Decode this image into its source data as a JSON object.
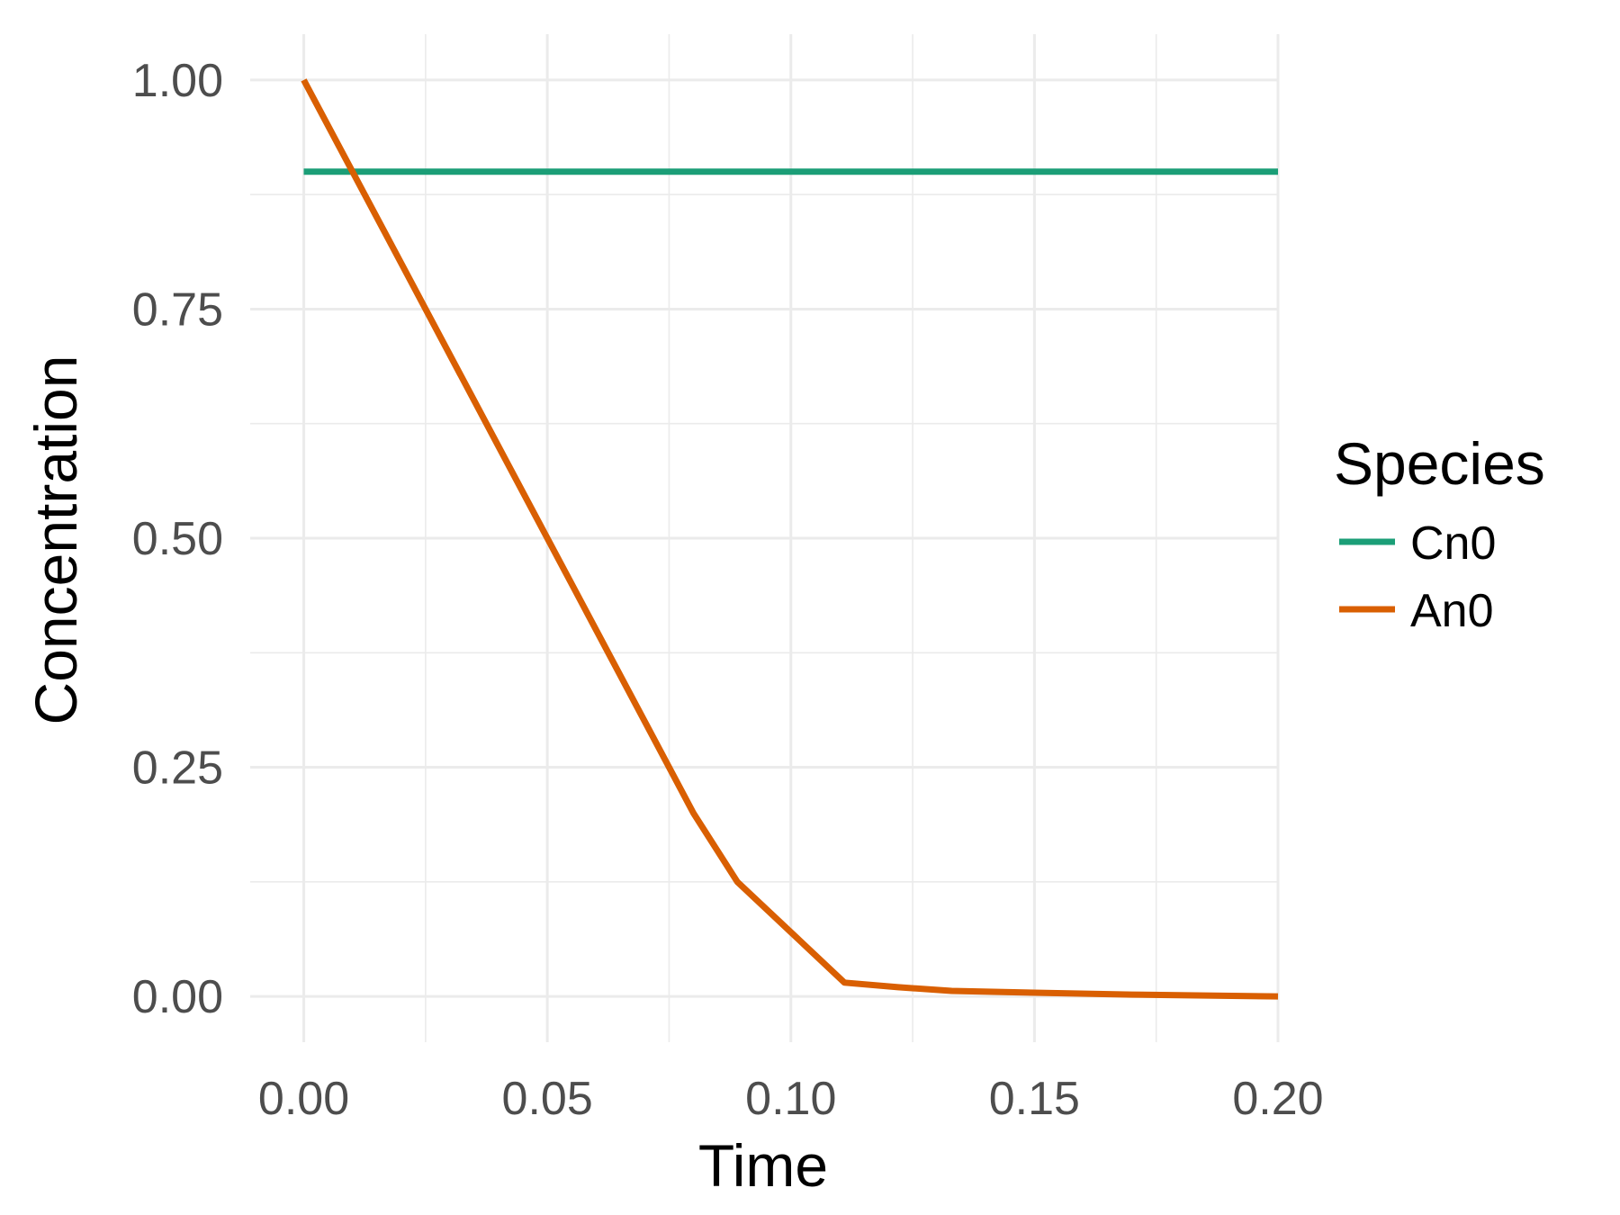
{
  "chart_data": {
    "type": "line",
    "xlabel": "Time",
    "ylabel": "Concentration",
    "xlim": [
      -0.011,
      0.2
    ],
    "ylim": [
      -0.05,
      1.05
    ],
    "x_ticks": [
      0.0,
      0.05,
      0.1,
      0.15,
      0.2
    ],
    "x_tick_labels": [
      "0.00",
      "0.05",
      "0.10",
      "0.15",
      "0.20"
    ],
    "x_minor_ticks": [
      0.025,
      0.075,
      0.125,
      0.175
    ],
    "y_ticks": [
      0.0,
      0.25,
      0.5,
      0.75,
      1.0
    ],
    "y_tick_labels": [
      "0.00",
      "0.25",
      "0.50",
      "0.75",
      "1.00"
    ],
    "y_minor_ticks": [
      0.125,
      0.375,
      0.625,
      0.875
    ],
    "grid": true,
    "legend": {
      "title": "Species",
      "position": "right"
    },
    "series": [
      {
        "name": "Cn0",
        "color": "#1b9e77",
        "x": [
          0.0,
          0.2
        ],
        "y": [
          0.9,
          0.9
        ]
      },
      {
        "name": "An0",
        "color": "#d95f02",
        "x": [
          0.0,
          0.02,
          0.04,
          0.06,
          0.08,
          0.089,
          0.1,
          0.111,
          0.122,
          0.133,
          0.15,
          0.17,
          0.2
        ],
        "y": [
          1.0,
          0.8,
          0.6,
          0.4,
          0.2,
          0.125,
          0.07,
          0.015,
          0.01,
          0.006,
          0.004,
          0.002,
          0.0
        ]
      }
    ]
  }
}
